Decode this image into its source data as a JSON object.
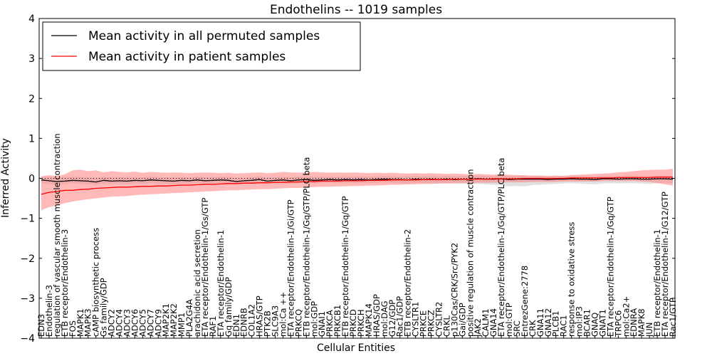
{
  "chart_data": {
    "type": "line",
    "title": "Endothelins -- 1019 samples",
    "xlabel": "Cellular Entities",
    "ylabel": "Inferred Activity",
    "ylim": [
      -4,
      4
    ],
    "yticks": [
      -4,
      -3,
      -2,
      -1,
      0,
      1,
      2,
      3,
      4
    ],
    "legend": {
      "position": "top-left",
      "entries": [
        {
          "label": "Mean activity in all permuted samples",
          "color": "#000000"
        },
        {
          "label": "Mean activity in patient samples",
          "color": "#ff0000"
        }
      ]
    },
    "categories": [
      "EDN3",
      "Endothelin-3",
      "regulation of vascular smooth muscle contraction",
      "ETB receptor/Endothelin-3",
      "FOS",
      "MAPK1",
      "MAPK3",
      "cAMP biosynthetic process",
      "Gs family/GDP",
      "ADCY2",
      "ADCY4",
      "ADCY3",
      "ADCY6",
      "ADCY5",
      "ADCY7",
      "ADCY9",
      "MAP2K1",
      "MAP2K2",
      "MMP1",
      "PLA2G4A",
      "arachidonic acid secretion",
      "ETA receptor/Endothelin-1/Gs/GTP",
      "RAF1",
      "ETA receptor/Endothelin-1",
      "Gq family/GDP",
      "EDN1",
      "EDNRB",
      "COL1A2",
      "HRAS/GTP",
      "PTK2B",
      "SLC9A3",
      "mol:Ca ++",
      "ETA receptor/Endothelin-1/Gi/GTP",
      "PRKCQ",
      "ETB receptor/Endothelin-1/Gq/GTP/PLC beta",
      "mol:GDP",
      "GNAI1",
      "PRKCA",
      "PRKCB1",
      "ETB receptor/Endothelin-1/Gq/GTP",
      "PRKCD",
      "PRKCH",
      "MAPK14",
      "HRAS/GDP",
      "mol:DAG",
      "G12/GDP",
      "Rac1/GDP",
      "ETB receptor/Endothelin-2",
      "CYSLTR1",
      "PRKCE",
      "PRKCZ",
      "CYSLTR2",
      "CRKL",
      "p130Cas/CRK/Src/PYK2",
      "Gai/GDP",
      "positive regulation of muscle contraction",
      "JAK2",
      "CALM1",
      "GNA14",
      "ETA receptor/Endothelin-1/Gq/GTP/PLC beta",
      "mol:GTP",
      "SRC",
      "EntrezGene:2778",
      "CRK",
      "GNA11",
      "GNA12",
      "PLCB1",
      "RAC1",
      "response to oxidative stress",
      "mol:IP3",
      "BCAR1",
      "GNAQ",
      "GNAT1",
      "ETA receptor/Endothelin-1/Gq/GTP",
      "TRPC6",
      "mol:Ca2+",
      "EDNRA",
      "MAPK8",
      "JUN",
      "ETB receptor/Endothelin-1",
      "ETA receptor/Endothelin-1/G12/GTP",
      "Rac1/GTP"
    ],
    "series": [
      {
        "name": "Mean activity in all permuted samples",
        "color": "#000000",
        "values": [
          -0.04,
          -0.06,
          -0.08,
          -0.07,
          -0.05,
          -0.06,
          -0.07,
          -0.09,
          -0.05,
          -0.07,
          -0.06,
          -0.07,
          -0.05,
          -0.06,
          -0.04,
          -0.05,
          -0.06,
          -0.07,
          -0.05,
          -0.06,
          -0.04,
          -0.06,
          -0.05,
          -0.04,
          -0.05,
          -0.08,
          -0.06,
          -0.05,
          -0.03,
          -0.07,
          -0.05,
          -0.04,
          -0.06,
          -0.04,
          -0.03,
          -0.05,
          -0.04,
          -0.03,
          -0.04,
          -0.03,
          -0.04,
          -0.03,
          -0.04,
          -0.03,
          -0.02,
          -0.03,
          -0.03,
          -0.04,
          -0.02,
          -0.03,
          -0.02,
          -0.03,
          -0.02,
          -0.03,
          -0.02,
          -0.02,
          -0.01,
          -0.02,
          -0.02,
          -0.01,
          -0.03,
          -0.02,
          -0.02,
          -0.02,
          -0.02,
          -0.03,
          -0.02,
          -0.02,
          -0.01,
          -0.02,
          -0.02,
          -0.03,
          -0.01,
          -0.01,
          -0.02,
          -0.01,
          -0.01,
          -0.02,
          -0.02,
          -0.01,
          -0.01,
          -0.02
        ],
        "lower": [
          -0.12,
          -0.14,
          -0.16,
          -0.15,
          -0.12,
          -0.14,
          -0.15,
          -0.17,
          -0.13,
          -0.14,
          -0.13,
          -0.15,
          -0.13,
          -0.14,
          -0.12,
          -0.13,
          -0.14,
          -0.15,
          -0.13,
          -0.14,
          -0.12,
          -0.14,
          -0.13,
          -0.12,
          -0.13,
          -0.15,
          -0.14,
          -0.13,
          -0.11,
          -0.14,
          -0.13,
          -0.12,
          -0.14,
          -0.12,
          -0.11,
          -0.13,
          -0.12,
          -0.11,
          -0.12,
          -0.11,
          -0.12,
          -0.11,
          -0.12,
          -0.11,
          -0.1,
          -0.11,
          -0.12,
          -0.13,
          -0.11,
          -0.12,
          -0.12,
          -0.13,
          -0.12,
          -0.14,
          -0.13,
          -0.14,
          -0.14,
          -0.15,
          -0.16,
          -0.17,
          -0.2,
          -0.19,
          -0.2,
          -0.17,
          -0.16,
          -0.15,
          -0.14,
          -0.13,
          -0.12,
          -0.13,
          -0.14,
          -0.15,
          -0.13,
          -0.12,
          -0.13,
          -0.12,
          -0.12,
          -0.13,
          -0.14,
          -0.12,
          -0.11,
          -0.12
        ],
        "upper": [
          0.04,
          0.03,
          0.02,
          0.03,
          0.04,
          0.03,
          0.02,
          0.01,
          0.03,
          0.02,
          0.03,
          0.02,
          0.03,
          0.02,
          0.04,
          0.03,
          0.02,
          0.02,
          0.03,
          0.02,
          0.04,
          0.03,
          0.03,
          0.04,
          0.03,
          0.01,
          0.02,
          0.03,
          0.05,
          0.02,
          0.03,
          0.04,
          0.02,
          0.04,
          0.05,
          0.03,
          0.04,
          0.05,
          0.04,
          0.05,
          0.04,
          0.05,
          0.04,
          0.05,
          0.06,
          0.05,
          0.05,
          0.05,
          0.06,
          0.05,
          0.06,
          0.05,
          0.06,
          0.05,
          0.06,
          0.06,
          0.07,
          0.06,
          0.06,
          0.07,
          0.06,
          0.06,
          0.06,
          0.06,
          0.06,
          0.05,
          0.06,
          0.06,
          0.07,
          0.06,
          0.06,
          0.05,
          0.07,
          0.07,
          0.06,
          0.07,
          0.07,
          0.06,
          0.06,
          0.07,
          0.07,
          0.06
        ]
      },
      {
        "name": "Mean activity in patient samples",
        "color": "#ff0000",
        "values": [
          -0.4,
          -0.35,
          -0.33,
          -0.3,
          -0.3,
          -0.28,
          -0.27,
          -0.25,
          -0.24,
          -0.23,
          -0.22,
          -0.22,
          -0.21,
          -0.2,
          -0.2,
          -0.19,
          -0.19,
          -0.18,
          -0.17,
          -0.17,
          -0.16,
          -0.15,
          -0.15,
          -0.14,
          -0.13,
          -0.13,
          -0.12,
          -0.12,
          -0.11,
          -0.11,
          -0.1,
          -0.1,
          -0.09,
          -0.09,
          -0.08,
          -0.08,
          -0.07,
          -0.07,
          -0.07,
          -0.06,
          -0.06,
          -0.06,
          -0.05,
          -0.05,
          -0.05,
          -0.04,
          -0.04,
          -0.04,
          -0.04,
          -0.03,
          -0.03,
          -0.03,
          -0.03,
          -0.02,
          -0.02,
          -0.02,
          -0.02,
          -0.02,
          -0.01,
          -0.01,
          -0.01,
          -0.01,
          0.0,
          0.0,
          0.0,
          0.0,
          0.0,
          0.0,
          0.01,
          0.01,
          0.01,
          0.01,
          0.01,
          0.01,
          0.02,
          0.02,
          0.02,
          0.02,
          0.02,
          0.03,
          0.03,
          0.03
        ],
        "lower": [
          -0.8,
          -0.72,
          -0.68,
          -0.62,
          -0.58,
          -0.55,
          -0.52,
          -0.5,
          -0.48,
          -0.46,
          -0.45,
          -0.44,
          -0.42,
          -0.41,
          -0.4,
          -0.39,
          -0.38,
          -0.37,
          -0.36,
          -0.35,
          -0.34,
          -0.33,
          -0.32,
          -0.31,
          -0.3,
          -0.3,
          -0.29,
          -0.28,
          -0.27,
          -0.27,
          -0.26,
          -0.25,
          -0.24,
          -0.24,
          -0.23,
          -0.22,
          -0.21,
          -0.21,
          -0.2,
          -0.2,
          -0.19,
          -0.19,
          -0.18,
          -0.18,
          -0.17,
          -0.16,
          -0.16,
          -0.15,
          -0.15,
          -0.14,
          -0.14,
          -0.13,
          -0.13,
          -0.12,
          -0.12,
          -0.12,
          -0.11,
          -0.11,
          -0.11,
          -0.1,
          -0.1,
          -0.1,
          -0.1,
          -0.09,
          -0.09,
          -0.09,
          -0.09,
          -0.08,
          -0.08,
          -0.08,
          -0.08,
          -0.08,
          -0.07,
          -0.07,
          -0.07,
          -0.07,
          -0.07,
          -0.08,
          -0.09,
          -0.12,
          -0.15,
          -0.18
        ],
        "upper": [
          0.05,
          0.08,
          0.06,
          0.1,
          0.2,
          0.22,
          0.18,
          0.2,
          0.15,
          0.18,
          0.16,
          0.15,
          0.17,
          0.14,
          0.16,
          0.15,
          0.14,
          0.15,
          0.14,
          0.13,
          0.14,
          0.15,
          0.14,
          0.13,
          0.14,
          0.12,
          0.13,
          0.14,
          0.15,
          0.13,
          0.14,
          0.16,
          0.15,
          0.14,
          0.15,
          0.16,
          0.15,
          0.14,
          0.15,
          0.14,
          0.15,
          0.14,
          0.13,
          0.14,
          0.13,
          0.14,
          0.13,
          0.12,
          0.13,
          0.12,
          0.13,
          0.12,
          0.11,
          0.12,
          0.11,
          0.1,
          0.11,
          0.1,
          0.09,
          0.1,
          0.09,
          0.08,
          0.08,
          0.07,
          0.07,
          0.06,
          0.07,
          0.06,
          0.08,
          0.09,
          0.1,
          0.11,
          0.12,
          0.13,
          0.15,
          0.16,
          0.18,
          0.2,
          0.21,
          0.22,
          0.22,
          0.24
        ]
      }
    ],
    "reference_line": {
      "y": 0,
      "style": "dotted"
    }
  }
}
